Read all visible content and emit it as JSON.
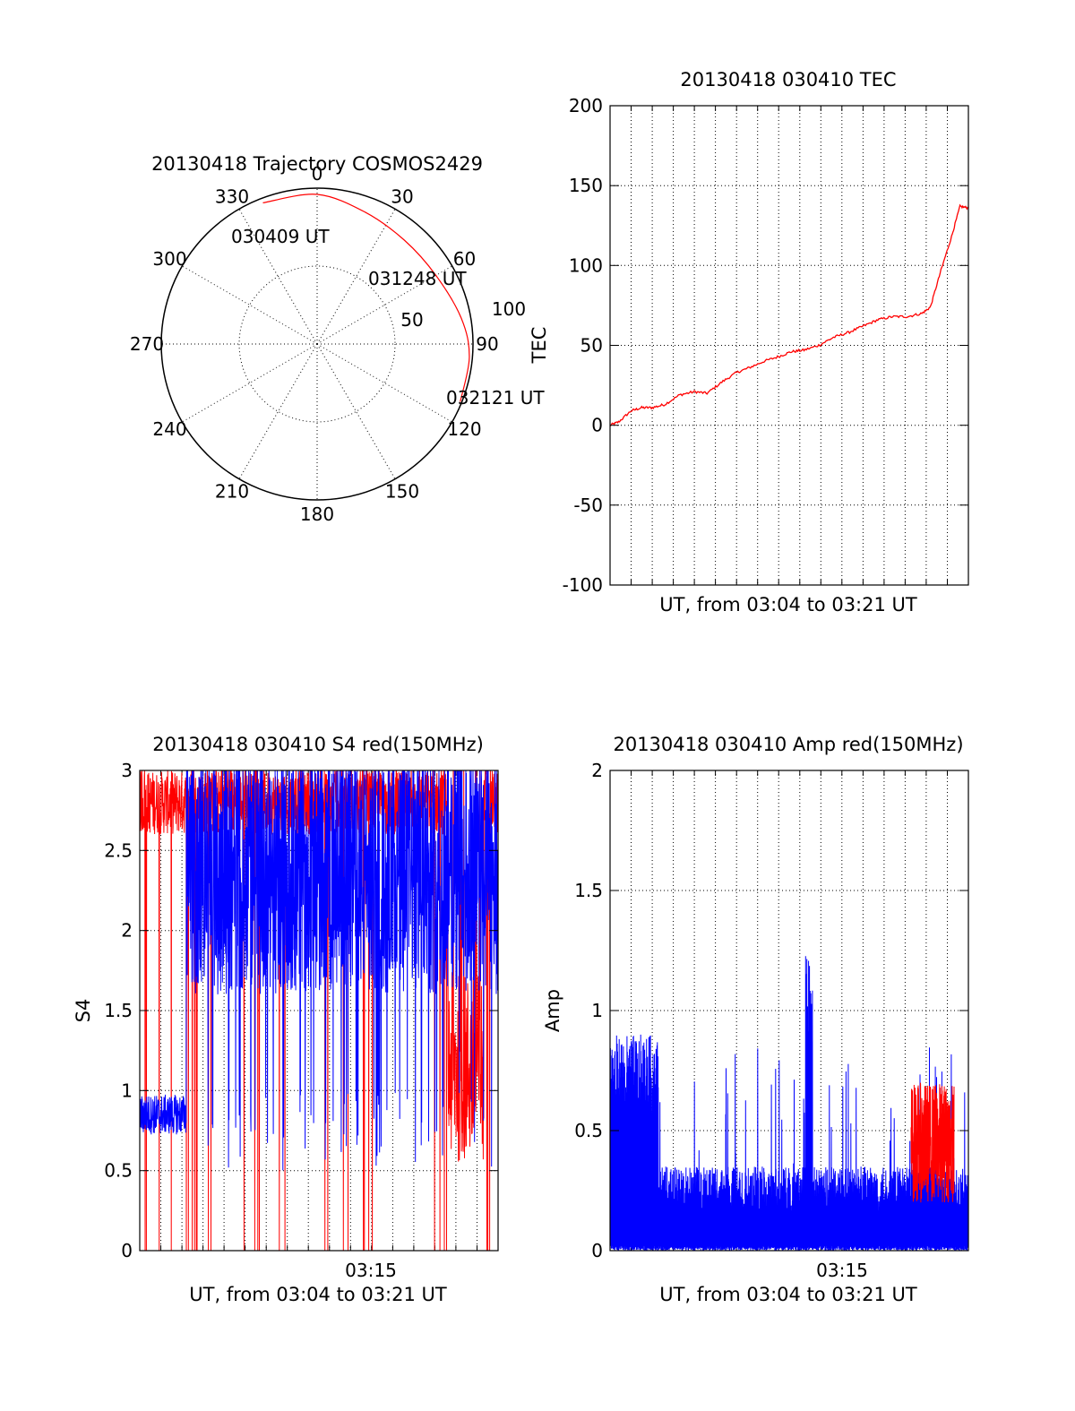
{
  "colors": {
    "red": "#ff0000",
    "blue": "#0000ff",
    "axis": "#000000"
  },
  "chart_data": [
    {
      "id": "trajectory",
      "type": "polar",
      "title": "20130418 Trajectory COSMOS2429",
      "angle_labels": [
        "0",
        "30",
        "60",
        "90",
        "120",
        "150",
        "180",
        "210",
        "240",
        "270",
        "300",
        "330"
      ],
      "radius_labels": [
        "50",
        "100"
      ],
      "r_max": 100,
      "trajectory": {
        "color": "#ff0000",
        "points": [
          [
            -21,
            97
          ],
          [
            0,
            96
          ],
          [
            20,
            90
          ],
          [
            40,
            87
          ],
          [
            60,
            88
          ],
          [
            80,
            94
          ],
          [
            95,
            98
          ],
          [
            112,
            99
          ]
        ],
        "labels": [
          "030409 UT",
          "031248 UT",
          "032121 UT"
        ]
      }
    },
    {
      "id": "tec",
      "type": "line",
      "title": "20130418 030410 TEC",
      "ylabel": "TEC",
      "xlabel": "UT, from 03:04 to 03:21 UT",
      "ylim": [
        -100,
        200
      ],
      "yticks": [
        "-100",
        "-50",
        "0",
        "50",
        "100",
        "150",
        "200"
      ],
      "xlim": [
        4.0,
        21.0
      ],
      "grid": true,
      "series": [
        {
          "color": "#ff0000",
          "x": [
            4.0,
            4.4,
            5.0,
            5.5,
            6.0,
            6.6,
            7.3,
            8.0,
            8.6,
            9.3,
            10.0,
            10.6,
            11.3,
            12.0,
            12.6,
            13.2,
            13.9,
            14.6,
            15.3,
            16.0,
            16.7,
            17.4,
            18.1,
            18.8,
            19.2,
            19.7,
            20.2,
            20.6,
            21.0
          ],
          "y": [
            0,
            2,
            9,
            11,
            11,
            13,
            19,
            21,
            20,
            27,
            33,
            36,
            40,
            43,
            46,
            47,
            50,
            55,
            58,
            62,
            66,
            68,
            68,
            70,
            74,
            97,
            118,
            137,
            136
          ]
        }
      ]
    },
    {
      "id": "s4",
      "type": "line",
      "title": "20130418 030410 S4 red(150MHz)",
      "ylabel": "S4",
      "xlabel": "UT, from 03:04 to 03:21 UT",
      "ylim": [
        0,
        3
      ],
      "yticks": [
        "0",
        "0.5",
        "1",
        "1.5",
        "2",
        "2.5",
        "3"
      ],
      "xlim": [
        4.0,
        21.0
      ],
      "xticks": [
        {
          "x": 15.0,
          "label": "03:15"
        }
      ],
      "grid": true
    },
    {
      "id": "amp",
      "type": "line",
      "title": "20130418 030410 Amp red(150MHz)",
      "ylabel": "Amp",
      "xlabel": "UT, from 03:04 to 03:21 UT",
      "ylim": [
        0,
        2
      ],
      "yticks": [
        "0",
        "0.5",
        "1",
        "1.5",
        "2"
      ],
      "xlim": [
        4.0,
        21.0
      ],
      "xticks": [
        {
          "x": 15.0,
          "label": "03:15"
        }
      ],
      "grid": true
    }
  ]
}
